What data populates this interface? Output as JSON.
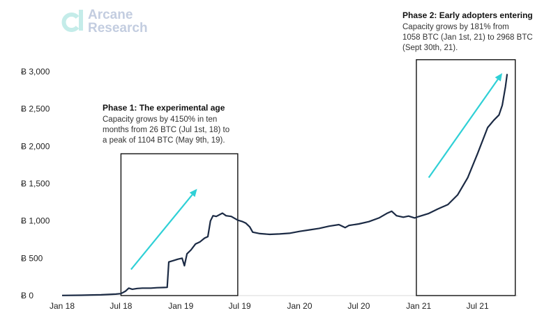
{
  "brand": {
    "line1": "Arcane",
    "line2": "Research",
    "color": "#c3cde0",
    "accent": "#c4ece9"
  },
  "colors": {
    "line": "#1b2a44",
    "arrow": "#2fd0d6",
    "box": "#111111",
    "axis": "#d9d9d9"
  },
  "chart_data": {
    "type": "line",
    "title": "",
    "xlabel": "",
    "ylabel": "",
    "currency_symbol": "Ƀ",
    "ylim": [
      0,
      3000
    ],
    "yticks": [
      0,
      500,
      1000,
      1500,
      2000,
      2500,
      3000
    ],
    "ytick_labels": [
      "Ƀ 0",
      "Ƀ 500",
      "Ƀ 1,000",
      "Ƀ 1,500",
      "Ƀ 2,000",
      "Ƀ 2,500",
      "Ƀ 3,000"
    ],
    "x_domain": [
      "2018-01-01",
      "2021-11-01"
    ],
    "xticks": [
      "2018-01-01",
      "2018-07-01",
      "2019-01-01",
      "2019-07-01",
      "2020-01-01",
      "2020-07-01",
      "2021-01-01",
      "2021-07-01"
    ],
    "xtick_labels": [
      "Jan 18",
      "Jul 18",
      "Jan 19",
      "Jul 19",
      "Jan 20",
      "Jul 20",
      "Jan 21",
      "Jul 21"
    ],
    "grid": false,
    "series": [
      {
        "name": "",
        "points": [
          [
            "2018-01-01",
            2
          ],
          [
            "2018-03-01",
            5
          ],
          [
            "2018-05-01",
            10
          ],
          [
            "2018-06-15",
            20
          ],
          [
            "2018-07-01",
            26
          ],
          [
            "2018-07-15",
            60
          ],
          [
            "2018-07-25",
            100
          ],
          [
            "2018-08-05",
            85
          ],
          [
            "2018-08-20",
            95
          ],
          [
            "2018-09-05",
            100
          ],
          [
            "2018-10-01",
            100
          ],
          [
            "2018-10-20",
            105
          ],
          [
            "2018-11-10",
            108
          ],
          [
            "2018-11-20",
            110
          ],
          [
            "2018-11-25",
            450
          ],
          [
            "2018-12-10",
            470
          ],
          [
            "2018-12-25",
            490
          ],
          [
            "2019-01-05",
            500
          ],
          [
            "2019-01-12",
            400
          ],
          [
            "2019-01-20",
            560
          ],
          [
            "2019-02-01",
            610
          ],
          [
            "2019-02-15",
            690
          ],
          [
            "2019-03-01",
            720
          ],
          [
            "2019-03-15",
            770
          ],
          [
            "2019-03-25",
            790
          ],
          [
            "2019-04-02",
            1000
          ],
          [
            "2019-04-10",
            1070
          ],
          [
            "2019-04-20",
            1060
          ],
          [
            "2019-05-09",
            1104
          ],
          [
            "2019-05-20",
            1070
          ],
          [
            "2019-06-05",
            1060
          ],
          [
            "2019-06-25",
            1010
          ],
          [
            "2019-07-10",
            990
          ],
          [
            "2019-07-20",
            970
          ],
          [
            "2019-08-01",
            920
          ],
          [
            "2019-08-10",
            850
          ],
          [
            "2019-09-01",
            830
          ],
          [
            "2019-10-01",
            820
          ],
          [
            "2019-11-01",
            825
          ],
          [
            "2019-12-01",
            835
          ],
          [
            "2020-01-01",
            860
          ],
          [
            "2020-02-01",
            880
          ],
          [
            "2020-03-01",
            900
          ],
          [
            "2020-04-01",
            930
          ],
          [
            "2020-05-01",
            950
          ],
          [
            "2020-05-20",
            910
          ],
          [
            "2020-06-01",
            940
          ],
          [
            "2020-07-01",
            960
          ],
          [
            "2020-08-01",
            990
          ],
          [
            "2020-09-01",
            1040
          ],
          [
            "2020-09-25",
            1100
          ],
          [
            "2020-10-10",
            1130
          ],
          [
            "2020-10-25",
            1070
          ],
          [
            "2020-11-15",
            1050
          ],
          [
            "2020-12-01",
            1065
          ],
          [
            "2020-12-20",
            1040
          ],
          [
            "2021-01-01",
            1058
          ],
          [
            "2021-02-01",
            1100
          ],
          [
            "2021-03-01",
            1160
          ],
          [
            "2021-04-01",
            1220
          ],
          [
            "2021-05-01",
            1350
          ],
          [
            "2021-06-01",
            1580
          ],
          [
            "2021-07-01",
            1900
          ],
          [
            "2021-08-01",
            2250
          ],
          [
            "2021-08-20",
            2350
          ],
          [
            "2021-09-05",
            2420
          ],
          [
            "2021-09-15",
            2550
          ],
          [
            "2021-09-25",
            2800
          ],
          [
            "2021-09-30",
            2968
          ]
        ]
      }
    ],
    "annotations": [
      {
        "title": "Phase 1: The experimental age",
        "lines": [
          "Capacity grows by 4150% in ten",
          "months from 26 BTC (Jul 1st, 18) to",
          "a peak of 1104 BTC (May 9th, 19)."
        ],
        "box_x": [
          "2018-07-01",
          "2019-06-25"
        ],
        "box_y": [
          0,
          1900
        ],
        "arrow_from": [
          "2018-08-01",
          350
        ],
        "arrow_to": [
          "2019-02-20",
          1430
        ]
      },
      {
        "title": "Phase 2: Early adopters entering",
        "lines": [
          "Capacity grows by 181% from",
          "1058 BTC (Jan 1st, 21) to 2968 BTC",
          "(Sept 30th, 21)."
        ],
        "box_x": [
          "2020-12-25",
          "2021-10-25"
        ],
        "box_y": [
          0,
          3160
        ],
        "arrow_from": [
          "2021-02-01",
          1580
        ],
        "arrow_to": [
          "2021-09-15",
          2980
        ]
      }
    ]
  }
}
